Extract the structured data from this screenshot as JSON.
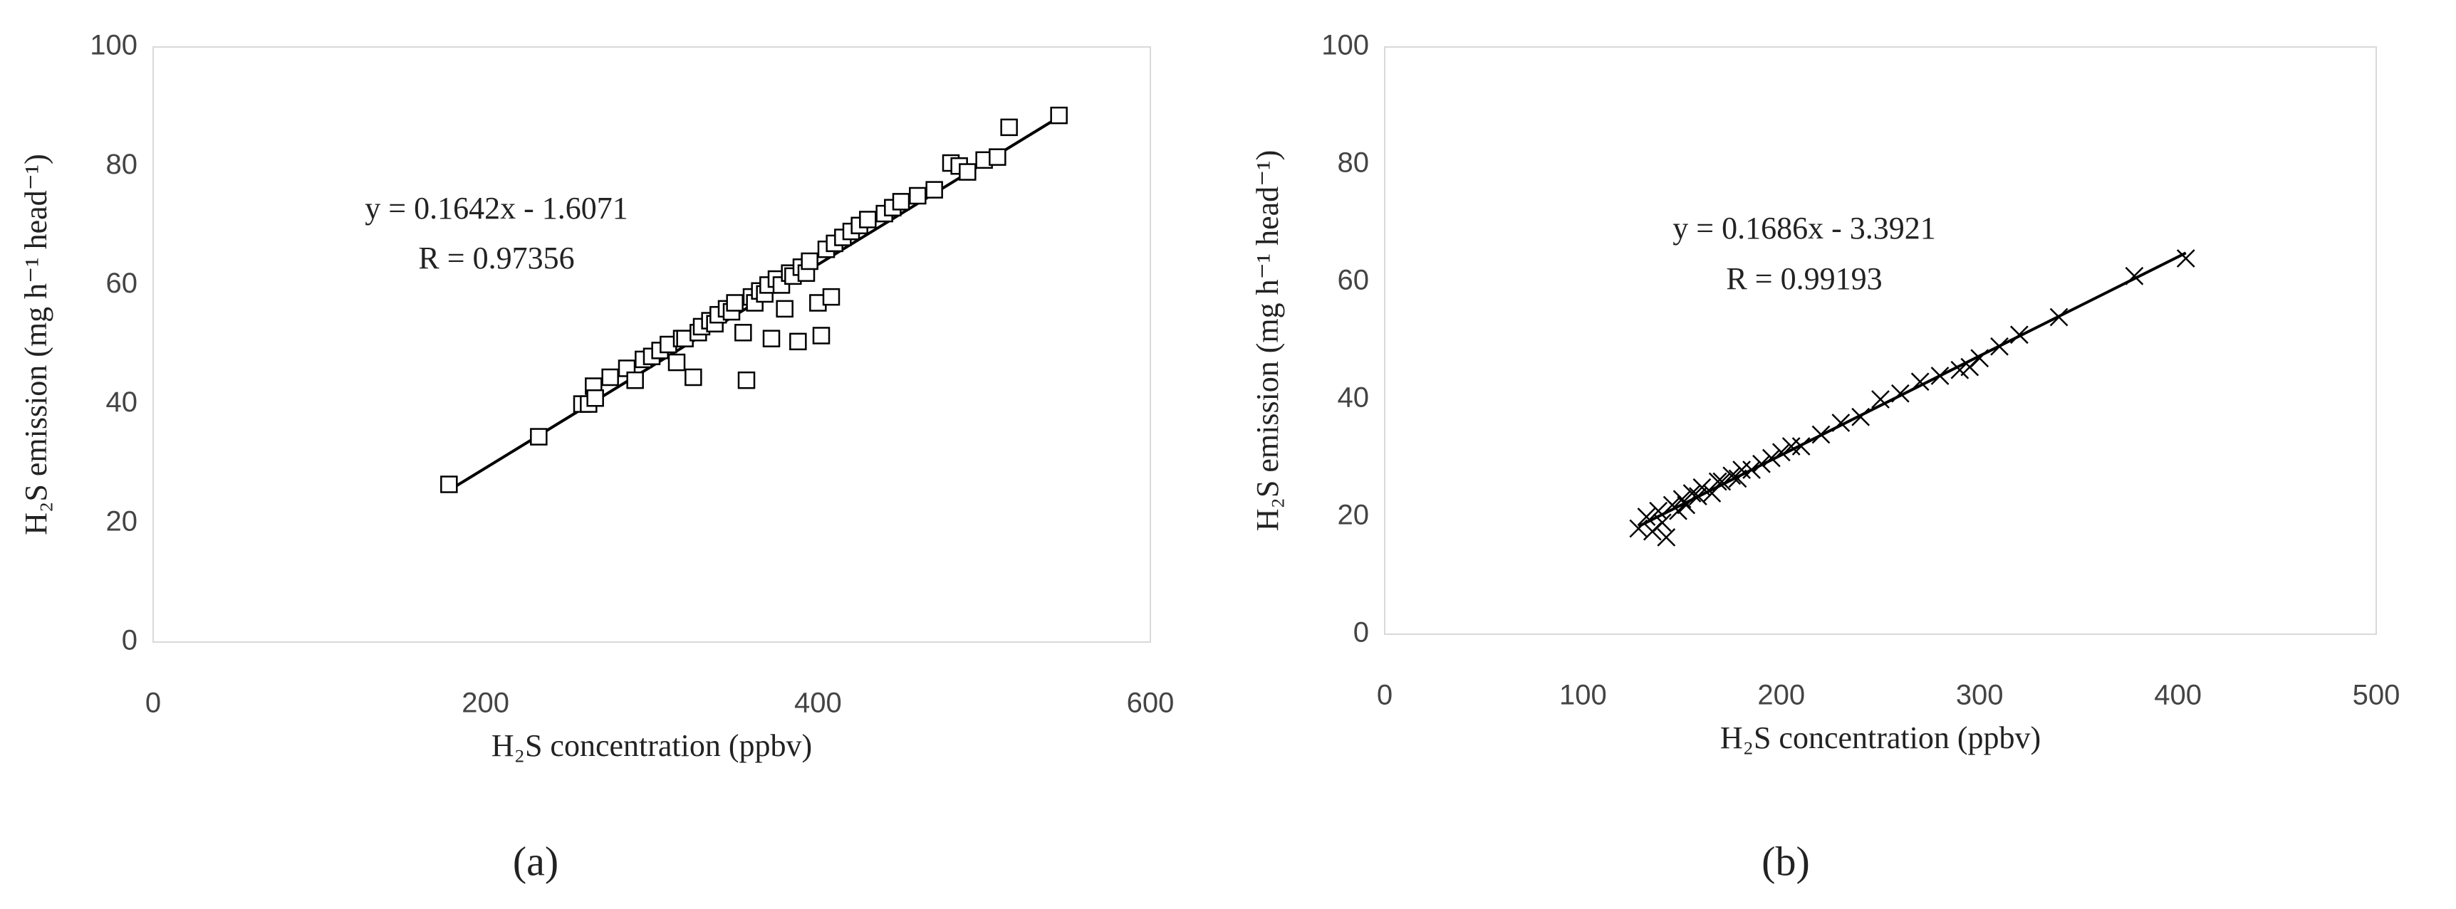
{
  "chart_data": [
    {
      "type": "scatter",
      "caption": "(a)",
      "xlabel": "H₂S concentration (ppbv)",
      "ylabel": "H₂S emission (mg h⁻¹ head⁻¹)",
      "annotations": [
        "y = 0.1642x - 1.6071",
        "R = 0.97356"
      ],
      "marker": "square",
      "color": "#000000",
      "trendline": true,
      "xlim": [
        0,
        600
      ],
      "xticks": [
        0,
        200,
        400,
        600
      ],
      "ylim": [
        0,
        100
      ],
      "yticks": [
        0,
        20,
        40,
        60,
        80,
        100
      ],
      "x": [
        178,
        232,
        258,
        262,
        265,
        266,
        275,
        285,
        290,
        295,
        300,
        305,
        310,
        315,
        318,
        320,
        325,
        328,
        330,
        335,
        338,
        340,
        345,
        348,
        350,
        355,
        357,
        360,
        362,
        365,
        368,
        370,
        372,
        375,
        378,
        380,
        383,
        385,
        388,
        390,
        393,
        395,
        400,
        402,
        405,
        408,
        410,
        415,
        420,
        425,
        430,
        440,
        445,
        450,
        460,
        470,
        480,
        485,
        490,
        500,
        508,
        515,
        545
      ],
      "values": [
        26.5,
        34.5,
        40,
        40,
        43,
        41,
        44.5,
        46,
        44,
        47.5,
        48,
        49,
        50,
        47,
        51,
        51,
        44.5,
        52,
        53,
        54,
        53.5,
        55,
        56,
        55.5,
        57,
        52,
        44,
        58,
        57,
        59,
        58.5,
        60,
        51,
        61,
        60,
        56,
        62,
        61.5,
        50.5,
        63,
        62,
        64,
        57,
        51.5,
        66,
        58,
        67,
        68,
        69,
        70,
        71,
        72,
        73,
        74,
        75,
        76,
        80.5,
        80,
        79,
        81,
        81.5,
        86.5,
        88.5
      ]
    },
    {
      "type": "scatter",
      "caption": "(b)",
      "xlabel": "H₂S concentration (ppbv)",
      "ylabel": "H₂S emission (mg h⁻¹ head⁻¹)",
      "annotations": [
        "y = 0.1686x - 3.3921",
        "R = 0.99193"
      ],
      "marker": "x",
      "color": "#000000",
      "trendline": true,
      "xlim": [
        0,
        500
      ],
      "xticks": [
        0,
        100,
        200,
        300,
        400,
        500
      ],
      "ylim": [
        0,
        100
      ],
      "yticks": [
        0,
        20,
        40,
        60,
        80,
        100
      ],
      "x": [
        128,
        132,
        135,
        138,
        140,
        142,
        145,
        148,
        150,
        152,
        155,
        158,
        160,
        165,
        168,
        170,
        175,
        178,
        180,
        185,
        190,
        195,
        200,
        205,
        210,
        220,
        230,
        240,
        250,
        260,
        270,
        280,
        290,
        295,
        300,
        310,
        320,
        340,
        378,
        404
      ],
      "values": [
        18,
        20,
        17.5,
        21,
        19,
        16.5,
        22,
        21,
        23,
        22,
        24,
        23.5,
        25,
        24,
        26,
        26,
        27,
        26.5,
        28,
        28,
        29,
        30,
        31,
        32,
        32,
        34,
        36,
        37,
        40,
        41,
        43,
        44,
        45,
        45.5,
        47,
        49,
        51,
        54,
        61,
        64
      ]
    }
  ]
}
